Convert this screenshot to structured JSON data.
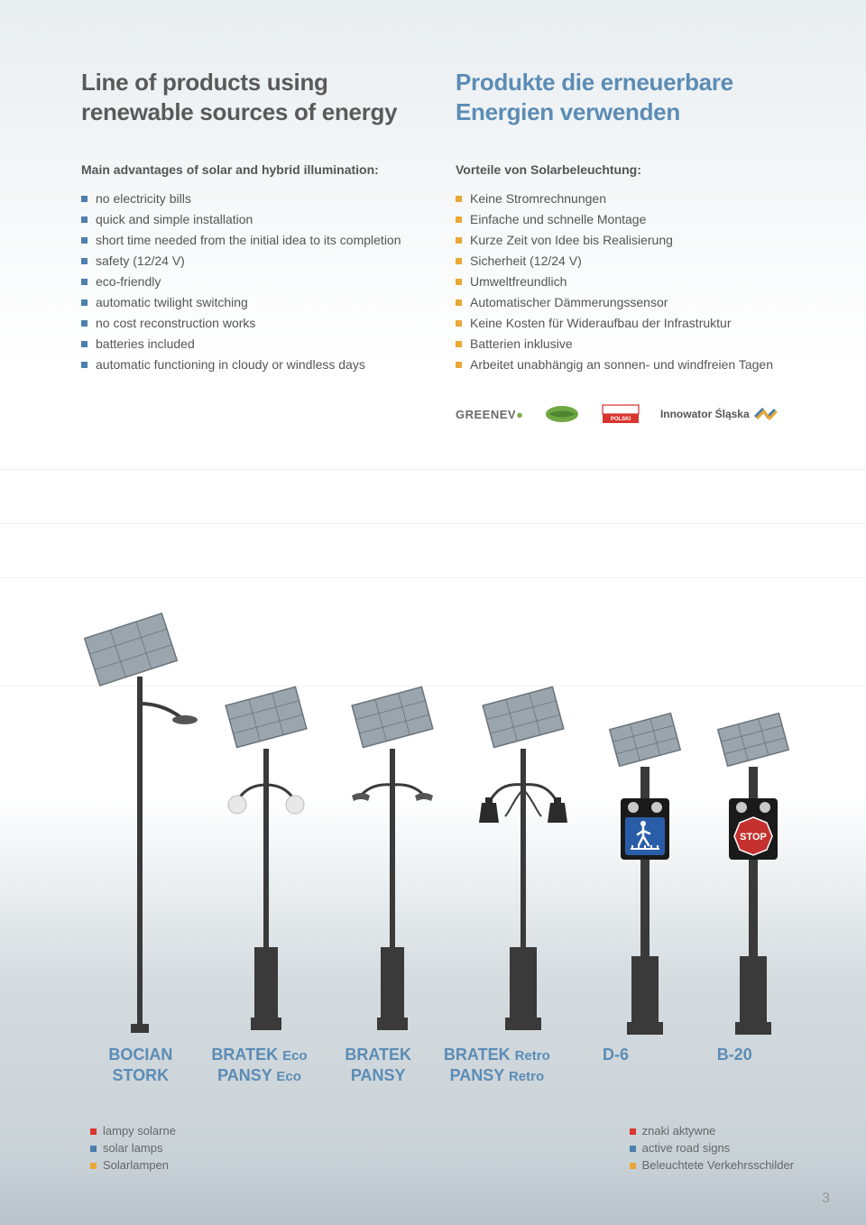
{
  "left": {
    "title": "Line of products using renewable sources of energy",
    "subtitle": "Main advantages of solar and hybrid illumination:",
    "bullet_color": "#4b7fae",
    "items": [
      "no electricity bills",
      "quick and simple installation",
      "short time needed from the initial idea to its completion",
      "safety (12/24 V)",
      "eco-friendly",
      "automatic twilight switching",
      "no cost reconstruction works",
      "batteries included",
      "automatic functioning in cloudy or windless days"
    ]
  },
  "right": {
    "title": "Produkte die erneuerbare Energien verwenden",
    "subtitle": "Vorteile von Solarbeleuchtung:",
    "bullet_color": "#e9a735",
    "items": [
      "Keine Stromrechnungen",
      "Einfache und schnelle Montage",
      "Kurze Zeit von Idee bis Realisierung",
      "Sicherheit (12/24 V)",
      "Umweltfreundlich",
      "Automatischer Dämmerungssensor",
      "Keine Kosten für Wideraufbau der Infrastruktur",
      "Batterien inklusive",
      "Arbeitet unabhängig an sonnen- und windfreien Tagen"
    ]
  },
  "logos": {
    "greenevo": "GREENEV",
    "innowator": "Innowator Śląska"
  },
  "products": [
    {
      "name1": "BOCIAN",
      "name2": "STORK",
      "sub1": "",
      "sub2": ""
    },
    {
      "name1": "BRATEK",
      "name2": "PANSY",
      "sub1": "Eco",
      "sub2": "Eco"
    },
    {
      "name1": "BRATEK",
      "name2": "PANSY",
      "sub1": "",
      "sub2": ""
    },
    {
      "name1": "BRATEK",
      "name2": "PANSY",
      "sub1": "Retro",
      "sub2": "Retro"
    },
    {
      "name1": "D-6",
      "name2": "",
      "sub1": "",
      "sub2": ""
    },
    {
      "name1": "B-20",
      "name2": "",
      "sub1": "",
      "sub2": ""
    }
  ],
  "legend_left": {
    "items": [
      {
        "text": "lampy solarne",
        "color": "#d9362f"
      },
      {
        "text": "solar lamps",
        "color": "#4b7fae"
      },
      {
        "text": "Solarlampen",
        "color": "#e9a735"
      }
    ]
  },
  "legend_right": {
    "items": [
      {
        "text": "znaki aktywne",
        "color": "#d9362f"
      },
      {
        "text": "active road signs",
        "color": "#4b7fae"
      },
      {
        "text": "Beleuchtete Verkehrsschilder",
        "color": "#e9a735"
      }
    ]
  },
  "page_number": "3",
  "lamp_colors": {
    "pole": "#3a3a3a",
    "pole_light": "#555555",
    "panel_fill": "#9aa5ad",
    "panel_stroke": "#6b747b",
    "globe": "#e8e8e8",
    "lantern": "#2b2b2b",
    "sign_blue": "#2a5da8",
    "sign_red": "#c4312e",
    "sign_text": "#ffffff"
  }
}
